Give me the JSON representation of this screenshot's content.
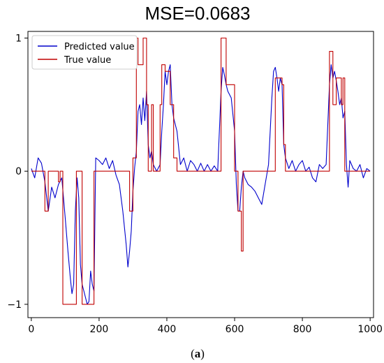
{
  "chart_data": {
    "type": "line",
    "title": "MSE=0.0683",
    "xlabel": "",
    "ylabel": "",
    "xlim": [
      -10,
      1010
    ],
    "ylim": [
      -1.1,
      1.05
    ],
    "x_ticks": [
      0,
      200,
      400,
      600,
      800,
      1000
    ],
    "y_ticks": [
      -1,
      0,
      1
    ],
    "x_tick_labels": [
      "0",
      "200",
      "400",
      "600",
      "800",
      "1000"
    ],
    "y_tick_labels": [
      "−1",
      "0",
      "1"
    ],
    "grid": false,
    "legend_position": "top-left",
    "caption": {
      "open": "(",
      "letter": "a",
      "close": ")"
    },
    "series": [
      {
        "name": "Predicted value",
        "color": "#0000cc",
        "points": [
          [
            0,
            0.02
          ],
          [
            10,
            -0.05
          ],
          [
            20,
            0.1
          ],
          [
            30,
            0.06
          ],
          [
            40,
            -0.08
          ],
          [
            50,
            -0.3
          ],
          [
            60,
            -0.12
          ],
          [
            70,
            -0.2
          ],
          [
            80,
            -0.1
          ],
          [
            90,
            -0.05
          ],
          [
            100,
            -0.35
          ],
          [
            108,
            -0.6
          ],
          [
            115,
            -0.8
          ],
          [
            120,
            -0.92
          ],
          [
            125,
            -0.85
          ],
          [
            130,
            -0.3
          ],
          [
            135,
            -0.05
          ],
          [
            140,
            -0.2
          ],
          [
            145,
            -0.7
          ],
          [
            150,
            -0.85
          ],
          [
            155,
            -0.9
          ],
          [
            160,
            -0.95
          ],
          [
            165,
            -1.0
          ],
          [
            170,
            -0.98
          ],
          [
            175,
            -0.75
          ],
          [
            180,
            -0.85
          ],
          [
            185,
            -0.9
          ],
          [
            190,
            0.1
          ],
          [
            200,
            0.08
          ],
          [
            210,
            0.05
          ],
          [
            220,
            0.1
          ],
          [
            230,
            0.02
          ],
          [
            240,
            0.08
          ],
          [
            250,
            -0.03
          ],
          [
            260,
            -0.1
          ],
          [
            270,
            -0.3
          ],
          [
            280,
            -0.55
          ],
          [
            285,
            -0.72
          ],
          [
            290,
            -0.6
          ],
          [
            295,
            -0.45
          ],
          [
            300,
            -0.15
          ],
          [
            305,
            0.03
          ],
          [
            310,
            0.15
          ],
          [
            315,
            0.45
          ],
          [
            320,
            0.5
          ],
          [
            325,
            0.35
          ],
          [
            330,
            0.55
          ],
          [
            335,
            0.38
          ],
          [
            340,
            0.6
          ],
          [
            345,
            0.2
          ],
          [
            350,
            0.1
          ],
          [
            355,
            0.15
          ],
          [
            360,
            0.05
          ],
          [
            370,
            0.0
          ],
          [
            380,
            0.05
          ],
          [
            385,
            0.3
          ],
          [
            390,
            0.5
          ],
          [
            395,
            0.75
          ],
          [
            400,
            0.65
          ],
          [
            405,
            0.75
          ],
          [
            410,
            0.8
          ],
          [
            415,
            0.5
          ],
          [
            420,
            0.4
          ],
          [
            430,
            0.3
          ],
          [
            440,
            0.05
          ],
          [
            450,
            0.1
          ],
          [
            460,
            0.0
          ],
          [
            470,
            0.08
          ],
          [
            480,
            0.05
          ],
          [
            490,
            0.0
          ],
          [
            500,
            0.06
          ],
          [
            510,
            0.0
          ],
          [
            520,
            0.05
          ],
          [
            530,
            0.0
          ],
          [
            540,
            0.04
          ],
          [
            550,
            0.0
          ],
          [
            560,
            0.6
          ],
          [
            565,
            0.78
          ],
          [
            570,
            0.72
          ],
          [
            575,
            0.65
          ],
          [
            580,
            0.6
          ],
          [
            590,
            0.55
          ],
          [
            600,
            0.3
          ],
          [
            605,
            -0.1
          ],
          [
            610,
            -0.3
          ],
          [
            615,
            -0.3
          ],
          [
            620,
            -0.12
          ],
          [
            625,
            0.0
          ],
          [
            630,
            -0.05
          ],
          [
            640,
            -0.1
          ],
          [
            650,
            -0.12
          ],
          [
            660,
            -0.15
          ],
          [
            670,
            -0.2
          ],
          [
            680,
            -0.25
          ],
          [
            690,
            -0.1
          ],
          [
            700,
            0.05
          ],
          [
            710,
            0.55
          ],
          [
            715,
            0.75
          ],
          [
            720,
            0.78
          ],
          [
            725,
            0.7
          ],
          [
            730,
            0.6
          ],
          [
            735,
            0.7
          ],
          [
            740,
            0.65
          ],
          [
            745,
            0.2
          ],
          [
            750,
            0.1
          ],
          [
            760,
            0.02
          ],
          [
            770,
            0.08
          ],
          [
            780,
            0.0
          ],
          [
            790,
            0.05
          ],
          [
            800,
            0.08
          ],
          [
            810,
            0.0
          ],
          [
            820,
            0.03
          ],
          [
            830,
            -0.05
          ],
          [
            840,
            -0.08
          ],
          [
            850,
            0.05
          ],
          [
            860,
            0.02
          ],
          [
            870,
            0.05
          ],
          [
            880,
            0.65
          ],
          [
            885,
            0.8
          ],
          [
            890,
            0.7
          ],
          [
            895,
            0.75
          ],
          [
            900,
            0.68
          ],
          [
            905,
            0.6
          ],
          [
            910,
            0.5
          ],
          [
            915,
            0.55
          ],
          [
            920,
            0.4
          ],
          [
            925,
            0.45
          ],
          [
            930,
            0.05
          ],
          [
            935,
            -0.12
          ],
          [
            940,
            0.08
          ],
          [
            950,
            0.02
          ],
          [
            960,
            0.0
          ],
          [
            970,
            0.05
          ],
          [
            980,
            -0.05
          ],
          [
            990,
            0.02
          ],
          [
            1000,
            0.0
          ]
        ]
      },
      {
        "name": "True value",
        "color": "#c00000",
        "points": [
          [
            0,
            0
          ],
          [
            40,
            0
          ],
          [
            40,
            -0.3
          ],
          [
            50,
            -0.3
          ],
          [
            50,
            0
          ],
          [
            80,
            0
          ],
          [
            80,
            -0.08
          ],
          [
            85,
            -0.08
          ],
          [
            85,
            0
          ],
          [
            93,
            0
          ],
          [
            93,
            -1
          ],
          [
            133,
            -1
          ],
          [
            133,
            0
          ],
          [
            150,
            0
          ],
          [
            150,
            -1
          ],
          [
            185,
            -1
          ],
          [
            185,
            0
          ],
          [
            290,
            0
          ],
          [
            290,
            -0.3
          ],
          [
            300,
            -0.3
          ],
          [
            300,
            0.1
          ],
          [
            310,
            0.1
          ],
          [
            310,
            1
          ],
          [
            315,
            1
          ],
          [
            315,
            0.8
          ],
          [
            330,
            0.8
          ],
          [
            330,
            1
          ],
          [
            340,
            1
          ],
          [
            340,
            0.5
          ],
          [
            345,
            0.5
          ],
          [
            345,
            0
          ],
          [
            355,
            0
          ],
          [
            355,
            0.5
          ],
          [
            360,
            0.5
          ],
          [
            360,
            0
          ],
          [
            380,
            0
          ],
          [
            380,
            0.5
          ],
          [
            385,
            0.5
          ],
          [
            385,
            0.8
          ],
          [
            395,
            0.8
          ],
          [
            395,
            0.75
          ],
          [
            410,
            0.75
          ],
          [
            410,
            0.5
          ],
          [
            420,
            0.5
          ],
          [
            420,
            0.1
          ],
          [
            430,
            0.1
          ],
          [
            430,
            0
          ],
          [
            560,
            0
          ],
          [
            560,
            1
          ],
          [
            575,
            1
          ],
          [
            575,
            0.65
          ],
          [
            600,
            0.65
          ],
          [
            600,
            0
          ],
          [
            610,
            0
          ],
          [
            610,
            -0.3
          ],
          [
            620,
            -0.3
          ],
          [
            620,
            -0.6
          ],
          [
            625,
            -0.6
          ],
          [
            625,
            0
          ],
          [
            720,
            0
          ],
          [
            720,
            0.7
          ],
          [
            740,
            0.7
          ],
          [
            740,
            0.65
          ],
          [
            745,
            0.65
          ],
          [
            745,
            0.2
          ],
          [
            750,
            0.2
          ],
          [
            750,
            0
          ],
          [
            880,
            0
          ],
          [
            880,
            0.9
          ],
          [
            890,
            0.9
          ],
          [
            890,
            0.5
          ],
          [
            900,
            0.5
          ],
          [
            900,
            0.7
          ],
          [
            915,
            0.7
          ],
          [
            915,
            0.5
          ],
          [
            920,
            0.5
          ],
          [
            920,
            0.7
          ],
          [
            925,
            0.7
          ],
          [
            925,
            0
          ],
          [
            1000,
            0
          ]
        ]
      }
    ]
  }
}
